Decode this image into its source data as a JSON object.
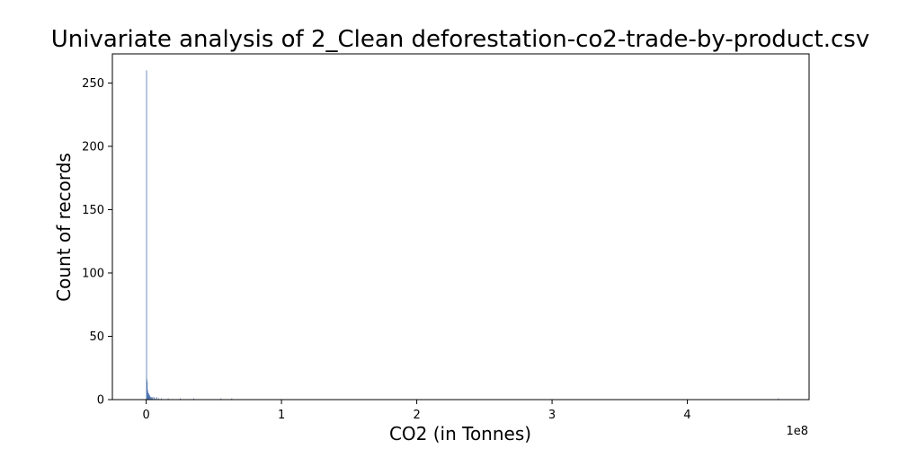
{
  "chart_data": {
    "type": "bar",
    "title": "Univariate analysis of 2_Clean deforestation-co2-trade-by-product.csv",
    "xlabel": "CO2 (in Tonnes)",
    "ylabel": "Count of records",
    "x_offset_label": "1e8",
    "xlim": [
      -0.25,
      4.9
    ],
    "ylim": [
      0,
      273
    ],
    "grid": false,
    "legend": "none",
    "bar_color": "#4c72b0",
    "x_ticks": [
      0,
      1,
      2,
      3,
      4
    ],
    "x_tick_labels": [
      "0",
      "1",
      "2",
      "3",
      "4"
    ],
    "y_ticks": [
      0,
      50,
      100,
      150,
      200,
      250
    ],
    "y_tick_labels": [
      "0",
      "50",
      "100",
      "150",
      "200",
      "250"
    ],
    "bin_width": 0.0025,
    "bins": [
      {
        "x": 0.0,
        "count": 260
      },
      {
        "x": 0.0025,
        "count": 16
      },
      {
        "x": 0.005,
        "count": 14
      },
      {
        "x": 0.0075,
        "count": 8
      },
      {
        "x": 0.01,
        "count": 6
      },
      {
        "x": 0.0125,
        "count": 4
      },
      {
        "x": 0.015,
        "count": 5
      },
      {
        "x": 0.0175,
        "count": 3
      },
      {
        "x": 0.02,
        "count": 4
      },
      {
        "x": 0.025,
        "count": 3
      },
      {
        "x": 0.03,
        "count": 2
      },
      {
        "x": 0.035,
        "count": 2
      },
      {
        "x": 0.04,
        "count": 1
      },
      {
        "x": 0.045,
        "count": 2
      },
      {
        "x": 0.055,
        "count": 2
      },
      {
        "x": 0.065,
        "count": 1
      },
      {
        "x": 0.075,
        "count": 2
      },
      {
        "x": 0.09,
        "count": 1
      },
      {
        "x": 0.11,
        "count": 1
      },
      {
        "x": 0.16,
        "count": 1
      },
      {
        "x": 0.25,
        "count": 1
      },
      {
        "x": 0.35,
        "count": 1
      },
      {
        "x": 0.55,
        "count": 1
      },
      {
        "x": 0.63,
        "count": 1
      },
      {
        "x": 4.67,
        "count": 1
      }
    ]
  }
}
